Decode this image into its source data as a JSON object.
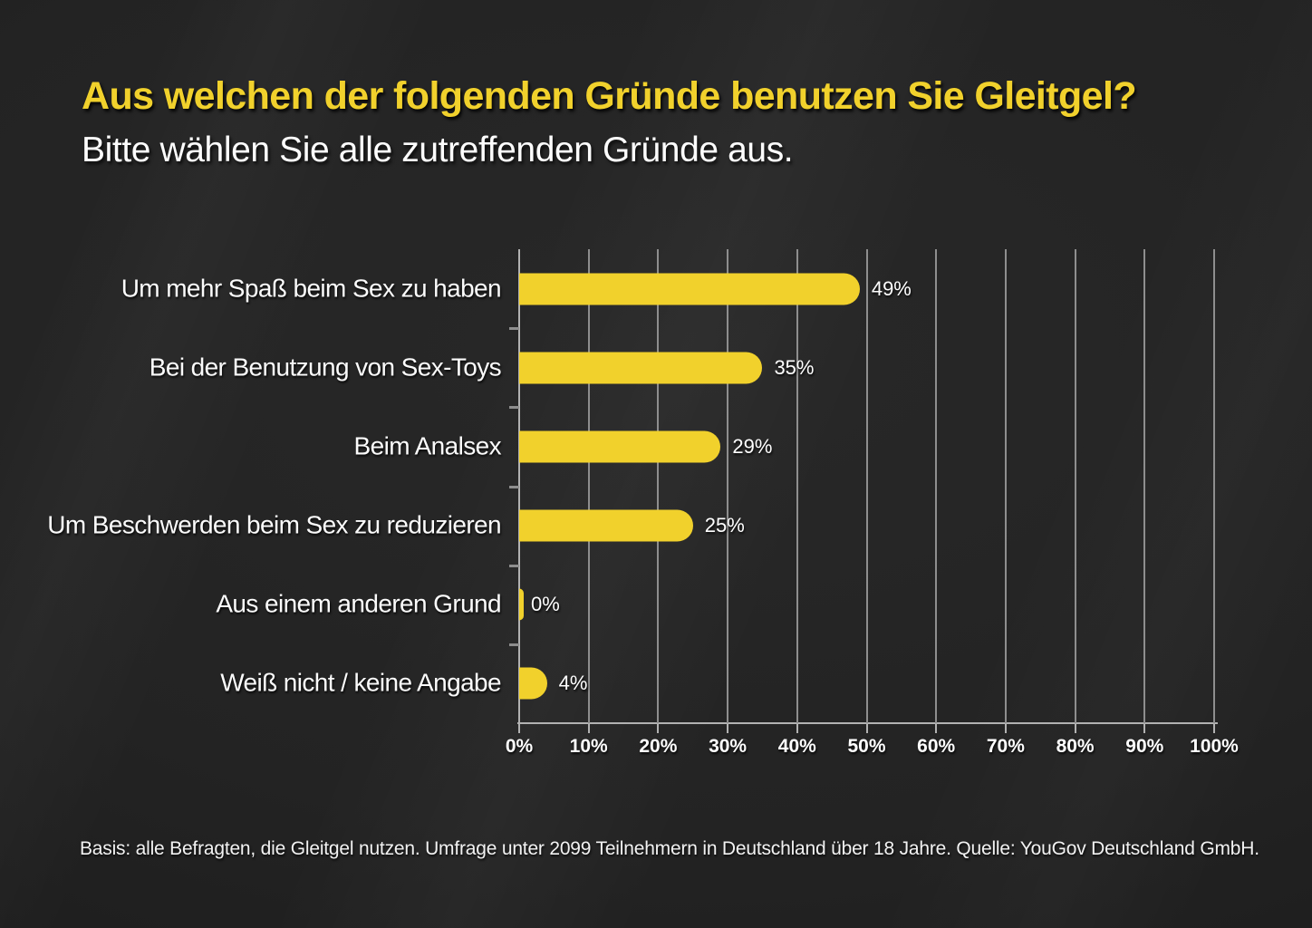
{
  "colors": {
    "background": "#232323",
    "accent_yellow": "#F1D12C",
    "text_white": "#FFFFFF",
    "gridline": "#8E8E8E",
    "axis": "#B2B2B2"
  },
  "chart_data": {
    "type": "bar",
    "orientation": "horizontal",
    "title": "Aus welchen der folgenden Gründe benutzen Sie Gleitgel?",
    "subtitle": "Bitte wählen Sie alle zutreffenden Gründe aus.",
    "categories": [
      "Um mehr Spaß beim Sex zu haben",
      "Bei der Benutzung von Sex-Toys",
      "Beim Analsex",
      "Um Beschwerden beim Sex zu reduzieren",
      "Aus einem anderen Grund",
      "Weiß nicht / keine Angabe"
    ],
    "values": [
      49,
      35,
      29,
      25,
      0,
      4
    ],
    "value_labels": [
      "49%",
      "35%",
      "29%",
      "25%",
      "0%",
      "4%"
    ],
    "xlim": [
      0,
      100
    ],
    "x_tick_step": 10,
    "x_tick_labels": [
      "0%",
      "10%",
      "20%",
      "30%",
      "40%",
      "50%",
      "60%",
      "70%",
      "80%",
      "90%",
      "100%"
    ],
    "grid": true,
    "legend": false,
    "bar_color": "#F1D12C",
    "source_note": "Basis: alle Befragten, die Gleitgel nutzen. Umfrage unter 2099 Teilnehmern in Deutschland über 18 Jahre. Quelle: YouGov Deutschland GmbH."
  }
}
